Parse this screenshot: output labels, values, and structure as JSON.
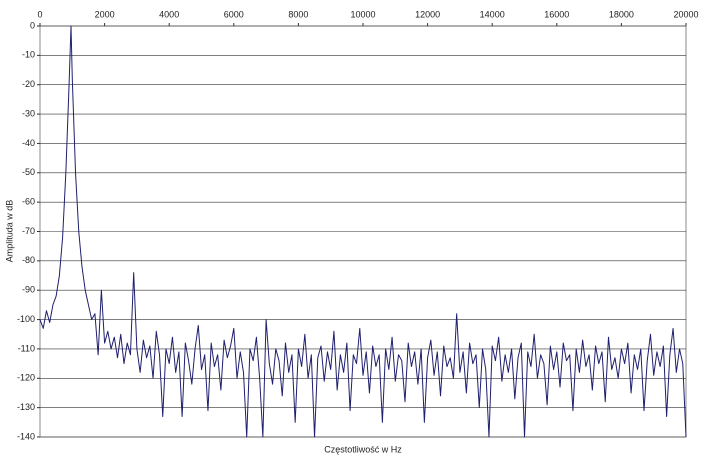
{
  "chart_data": {
    "type": "line",
    "xlabel": "Częstotliwość w Hz",
    "ylabel": "Amplituda w dB",
    "x": [
      0,
      100,
      200,
      300,
      400,
      500,
      600,
      700,
      800,
      900,
      960,
      1000,
      1100,
      1200,
      1300,
      1400,
      1500,
      1600,
      1700,
      1800,
      1900,
      2000,
      2100,
      2200,
      2300,
      2400,
      2500,
      2600,
      2700,
      2800,
      2900,
      3000,
      3100,
      3200,
      3300,
      3400,
      3500,
      3600,
      3700,
      3800,
      3900,
      4000,
      4100,
      4200,
      4300,
      4400,
      4500,
      4600,
      4700,
      4800,
      4900,
      5000,
      5100,
      5200,
      5300,
      5400,
      5500,
      5600,
      5700,
      5800,
      5900,
      6000,
      6100,
      6200,
      6300,
      6400,
      6500,
      6600,
      6700,
      6800,
      6900,
      7000,
      7100,
      7200,
      7300,
      7400,
      7500,
      7600,
      7700,
      7800,
      7900,
      8000,
      8100,
      8200,
      8300,
      8400,
      8500,
      8600,
      8700,
      8800,
      8900,
      9000,
      9100,
      9200,
      9300,
      9400,
      9500,
      9600,
      9700,
      9800,
      9900,
      10000,
      10100,
      10200,
      10300,
      10400,
      10500,
      10600,
      10700,
      10800,
      10900,
      11000,
      11100,
      11200,
      11300,
      11400,
      11500,
      11600,
      11700,
      11800,
      11900,
      12000,
      12100,
      12200,
      12300,
      12400,
      12500,
      12600,
      12700,
      12800,
      12900,
      13000,
      13100,
      13200,
      13300,
      13400,
      13500,
      13600,
      13700,
      13800,
      13900,
      14000,
      14100,
      14200,
      14300,
      14400,
      14500,
      14600,
      14700,
      14800,
      14900,
      15000,
      15100,
      15200,
      15300,
      15400,
      15500,
      15600,
      15700,
      15800,
      15900,
      16000,
      16100,
      16200,
      16300,
      16400,
      16500,
      16600,
      16700,
      16800,
      16900,
      17000,
      17100,
      17200,
      17300,
      17400,
      17500,
      17600,
      17700,
      17800,
      17900,
      18000,
      18100,
      18200,
      18300,
      18400,
      18500,
      18600,
      18700,
      18800,
      18900,
      19000,
      19100,
      19200,
      19300,
      19400,
      19500,
      19600,
      19700,
      19800,
      19900,
      20000
    ],
    "values": [
      -100,
      -103,
      -97,
      -101,
      -95,
      -92,
      -85,
      -72,
      -50,
      -20,
      0,
      -18,
      -50,
      -70,
      -82,
      -90,
      -95,
      -100,
      -98,
      -112,
      -90,
      -108,
      -104,
      -110,
      -106,
      -113,
      -105,
      -115,
      -108,
      -112,
      -84,
      -110,
      -118,
      -107,
      -113,
      -109,
      -120,
      -104,
      -112,
      -133,
      -110,
      -115,
      -106,
      -118,
      -111,
      -133,
      -108,
      -114,
      -122,
      -110,
      -102,
      -117,
      -112,
      -131,
      -108,
      -116,
      -112,
      -124,
      -107,
      -113,
      -109,
      -103,
      -120,
      -111,
      -118,
      -140,
      -110,
      -114,
      -106,
      -120,
      -140,
      -100,
      -115,
      -122,
      -110,
      -114,
      -126,
      -108,
      -118,
      -112,
      -135,
      -110,
      -116,
      -105,
      -120,
      -112,
      -140,
      -113,
      -109,
      -121,
      -111,
      -117,
      -104,
      -124,
      -112,
      -118,
      -108,
      -131,
      -112,
      -115,
      -103,
      -119,
      -111,
      -125,
      -109,
      -116,
      -112,
      -135,
      -110,
      -117,
      -106,
      -121,
      -112,
      -114,
      -128,
      -108,
      -116,
      -111,
      -122,
      -110,
      -135,
      -113,
      -107,
      -119,
      -111,
      -126,
      -109,
      -116,
      -113,
      -120,
      -98,
      -118,
      -111,
      -125,
      -108,
      -115,
      -112,
      -130,
      -110,
      -117,
      -140,
      -109,
      -114,
      -106,
      -121,
      -112,
      -118,
      -110,
      -127,
      -113,
      -108,
      -140,
      -111,
      -116,
      -105,
      -120,
      -112,
      -115,
      -129,
      -109,
      -117,
      -111,
      -123,
      -108,
      -114,
      -112,
      -131,
      -110,
      -118,
      -107,
      -116,
      -112,
      -124,
      -109,
      -115,
      -111,
      -128,
      -106,
      -117,
      -113,
      -120,
      -110,
      -115,
      -108,
      -125,
      -112,
      -117,
      -110,
      -131,
      -114,
      -105,
      -119,
      -111,
      -116,
      -109,
      -133,
      -112,
      -103,
      -118,
      -110,
      -115,
      -140
    ],
    "color": "#1f1f6e",
    "xlim": [
      0,
      20000
    ],
    "xticks": [
      0,
      2000,
      4000,
      6000,
      8000,
      10000,
      12000,
      14000,
      16000,
      18000,
      20000
    ],
    "ylim": [
      -140,
      0
    ],
    "yticks": [
      0,
      -10,
      -20,
      -30,
      -40,
      -50,
      -60,
      -70,
      -80,
      -90,
      -100,
      -110,
      -120,
      -130,
      -140
    ],
    "grid": true
  }
}
